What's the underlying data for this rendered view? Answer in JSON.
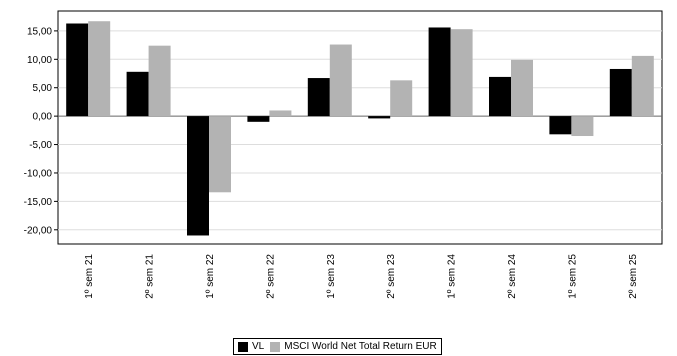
{
  "chart_data": {
    "type": "bar",
    "categories": [
      "1º sem 21",
      "2º sem 21",
      "1º sem 22",
      "2º sem 22",
      "1º sem 23",
      "2º sem 23",
      "1º sem 24",
      "2º sem 24",
      "1º sem 25",
      "2º sem 25"
    ],
    "series": [
      {
        "name": "VL",
        "values": [
          16.3,
          7.8,
          -21.0,
          -1.0,
          6.7,
          -0.4,
          15.6,
          6.9,
          -3.2,
          8.3
        ],
        "color": "#000000"
      },
      {
        "name": "MSCI World Net Total Return EUR",
        "values": [
          16.7,
          12.4,
          -13.4,
          1.0,
          12.6,
          6.3,
          15.3,
          9.9,
          -3.5,
          10.6
        ],
        "color": "#b3b3b3"
      }
    ],
    "ylim": [
      -22.5,
      18.5
    ],
    "yticks": [
      15,
      10,
      5,
      0,
      -5,
      -10,
      -15,
      -20
    ],
    "ytick_labels": [
      "15,00",
      "10,00",
      "5,00",
      "0,00",
      "-5,00",
      "-10,00",
      "-15,00",
      "-20,00"
    ],
    "title": "",
    "xlabel": "",
    "ylabel": "",
    "legend_position": "bottom"
  }
}
